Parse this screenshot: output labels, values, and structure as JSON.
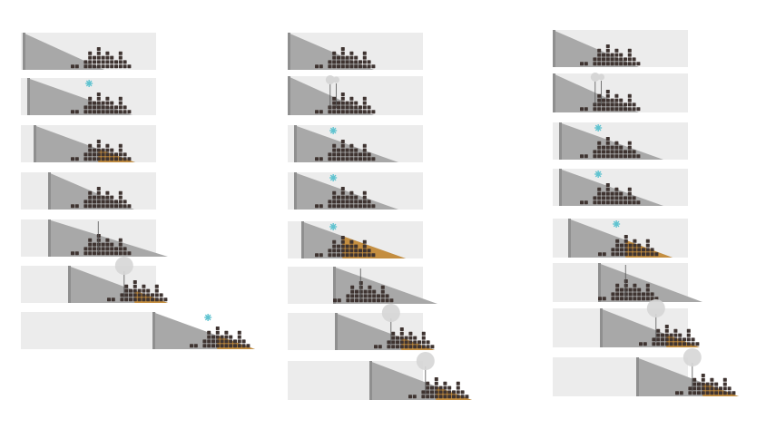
{
  "diagram": {
    "columns": [
      {
        "name": "column-left",
        "panels": [
          {
            "stage": "base-bars"
          },
          {
            "stage": "sparkle",
            "sparkle": true
          },
          {
            "stage": "orange-wedge",
            "orange": true
          },
          {
            "stage": "base-bars"
          },
          {
            "stage": "single-pin",
            "pins": 1
          },
          {
            "stage": "orange-with-balloon",
            "orange": true,
            "balloon": true
          },
          {
            "stage": "orange-sparkle-wide",
            "orange": true,
            "sparkle": true
          }
        ]
      },
      {
        "name": "column-middle",
        "panels": [
          {
            "stage": "base-bars"
          },
          {
            "stage": "double-balloon",
            "pins": 2,
            "smallBalloons": true
          },
          {
            "stage": "sparkle",
            "sparkle": true
          },
          {
            "stage": "sparkle",
            "sparkle": true
          },
          {
            "stage": "orange-sparkle",
            "orange": true,
            "sparkle": true
          },
          {
            "stage": "single-pin",
            "pins": 1
          },
          {
            "stage": "orange-with-balloon",
            "orange": true,
            "balloon": true
          },
          {
            "stage": "orange-with-balloon",
            "orange": true,
            "balloon": true
          }
        ]
      },
      {
        "name": "column-right",
        "panels": [
          {
            "stage": "base-bars"
          },
          {
            "stage": "double-balloon",
            "pins": 2,
            "smallBalloons": true
          },
          {
            "stage": "sparkle",
            "sparkle": true
          },
          {
            "stage": "sparkle",
            "sparkle": true
          },
          {
            "stage": "orange-sparkle",
            "orange": true,
            "sparkle": true
          },
          {
            "stage": "single-pin",
            "pins": 1
          },
          {
            "stage": "orange-with-balloon",
            "orange": true,
            "balloon": true
          },
          {
            "stage": "orange-with-balloon",
            "orange": true,
            "balloon": true
          }
        ]
      }
    ],
    "colors": {
      "panel": "#ececec",
      "wedge": "#a8a8a8",
      "wedgeDark": "#8f8f8f",
      "bars": "#3f3431",
      "orange": "#c98a2e",
      "sparkle": "#5fc3d0",
      "balloon": "#d6d6d6",
      "pin": "#555555"
    },
    "barProfile": [
      1,
      1,
      0,
      2,
      4,
      3,
      5,
      3,
      4,
      3,
      2,
      4,
      2,
      1
    ]
  }
}
